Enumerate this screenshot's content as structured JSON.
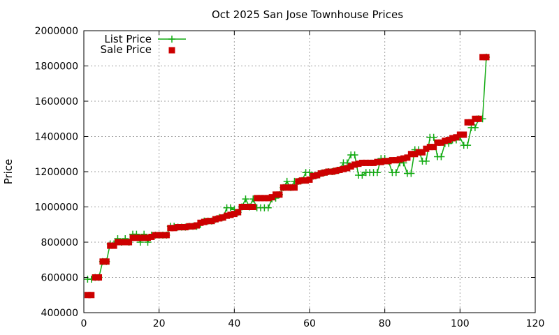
{
  "chart_data": {
    "type": "line",
    "title": "Oct 2025 San Jose Townhouse Prices",
    "xlabel": "",
    "ylabel": "Price",
    "xlim": [
      0,
      120
    ],
    "ylim": [
      400000,
      2000000
    ],
    "xticks": [
      0,
      20,
      40,
      60,
      80,
      100,
      120
    ],
    "yticks": [
      400000,
      600000,
      800000,
      1000000,
      1200000,
      1400000,
      1600000,
      1800000,
      2000000
    ],
    "grid": true,
    "legend_position": "top-left",
    "series": [
      {
        "name": "List Price",
        "style": "line-with-plus-markers",
        "color": "#11aa11",
        "x": [
          1,
          2,
          3,
          4,
          5,
          6,
          7,
          8,
          9,
          10,
          11,
          12,
          13,
          14,
          15,
          16,
          17,
          18,
          19,
          20,
          21,
          22,
          23,
          24,
          25,
          26,
          27,
          28,
          29,
          30,
          31,
          32,
          33,
          34,
          35,
          36,
          37,
          38,
          39,
          40,
          41,
          42,
          43,
          44,
          45,
          46,
          47,
          48,
          49,
          50,
          51,
          52,
          53,
          54,
          55,
          56,
          57,
          58,
          59,
          60,
          61,
          62,
          63,
          64,
          65,
          66,
          67,
          68,
          69,
          70,
          71,
          72,
          73,
          74,
          75,
          76,
          77,
          78,
          79,
          80,
          81,
          82,
          83,
          84,
          85,
          86,
          87,
          88,
          89,
          90,
          91,
          92,
          93,
          94,
          95,
          96,
          97,
          98,
          99,
          100,
          101,
          102,
          103,
          104,
          105,
          106,
          107
        ],
        "values": [
          590000,
          590000,
          600000,
          600000,
          690000,
          690000,
          790000,
          790000,
          820000,
          800000,
          820000,
          800000,
          845000,
          845000,
          800000,
          845000,
          800000,
          840000,
          840000,
          840000,
          840000,
          840000,
          890000,
          890000,
          885000,
          885000,
          885000,
          890000,
          890000,
          890000,
          900000,
          920000,
          920000,
          920000,
          930000,
          940000,
          940000,
          995000,
          995000,
          985000,
          970000,
          1000000,
          1045000,
          1000000,
          1045000,
          995000,
          995000,
          995000,
          995000,
          1045000,
          1050000,
          1070000,
          1110000,
          1145000,
          1110000,
          1145000,
          1145000,
          1150000,
          1195000,
          1195000,
          1175000,
          1180000,
          1190000,
          1195000,
          1200000,
          1200000,
          1205000,
          1210000,
          1250000,
          1250000,
          1295000,
          1295000,
          1180000,
          1180000,
          1195000,
          1195000,
          1195000,
          1195000,
          1275000,
          1275000,
          1260000,
          1195000,
          1195000,
          1250000,
          1250000,
          1190000,
          1190000,
          1325000,
          1325000,
          1260000,
          1260000,
          1395000,
          1395000,
          1285000,
          1285000,
          1360000,
          1360000,
          1380000,
          1380000,
          1395000,
          1350000,
          1350000,
          1450000,
          1450000,
          1500000,
          1500000,
          1850000
        ]
      },
      {
        "name": "Sale Price",
        "style": "filled-square-markers",
        "color": "#cc0000",
        "x": [
          1,
          2,
          3,
          4,
          5,
          6,
          7,
          8,
          9,
          10,
          11,
          12,
          13,
          14,
          15,
          16,
          17,
          18,
          19,
          20,
          21,
          22,
          23,
          24,
          25,
          26,
          27,
          28,
          29,
          30,
          31,
          32,
          33,
          34,
          35,
          36,
          37,
          38,
          39,
          40,
          41,
          42,
          43,
          44,
          45,
          46,
          47,
          48,
          49,
          50,
          51,
          52,
          53,
          54,
          55,
          56,
          57,
          58,
          59,
          60,
          61,
          62,
          63,
          64,
          65,
          66,
          67,
          68,
          69,
          70,
          71,
          72,
          73,
          74,
          75,
          76,
          77,
          78,
          79,
          80,
          81,
          82,
          83,
          84,
          85,
          86,
          87,
          88,
          89,
          90,
          91,
          92,
          93,
          94,
          95,
          96,
          97,
          98,
          99,
          100,
          101,
          102,
          103,
          104,
          105,
          106,
          107
        ],
        "values": [
          500000,
          500000,
          600000,
          600000,
          690000,
          690000,
          780000,
          780000,
          800000,
          800000,
          800000,
          800000,
          825000,
          825000,
          825000,
          825000,
          825000,
          830000,
          840000,
          840000,
          840000,
          840000,
          880000,
          880000,
          885000,
          885000,
          885000,
          890000,
          890000,
          895000,
          910000,
          915000,
          920000,
          920000,
          930000,
          935000,
          940000,
          950000,
          955000,
          960000,
          970000,
          1000000,
          1000000,
          1000000,
          1000000,
          1050000,
          1050000,
          1050000,
          1050000,
          1055000,
          1070000,
          1070000,
          1110000,
          1110000,
          1110000,
          1110000,
          1145000,
          1150000,
          1150000,
          1155000,
          1175000,
          1180000,
          1190000,
          1195000,
          1200000,
          1200000,
          1205000,
          1210000,
          1215000,
          1220000,
          1230000,
          1240000,
          1245000,
          1250000,
          1250000,
          1250000,
          1250000,
          1255000,
          1255000,
          1260000,
          1260000,
          1265000,
          1265000,
          1270000,
          1275000,
          1280000,
          1300000,
          1300000,
          1310000,
          1310000,
          1330000,
          1340000,
          1340000,
          1365000,
          1365000,
          1375000,
          1380000,
          1390000,
          1395000,
          1410000,
          1410000,
          1480000,
          1480000,
          1500000,
          1500000,
          1850000,
          1850000
        ]
      }
    ]
  }
}
